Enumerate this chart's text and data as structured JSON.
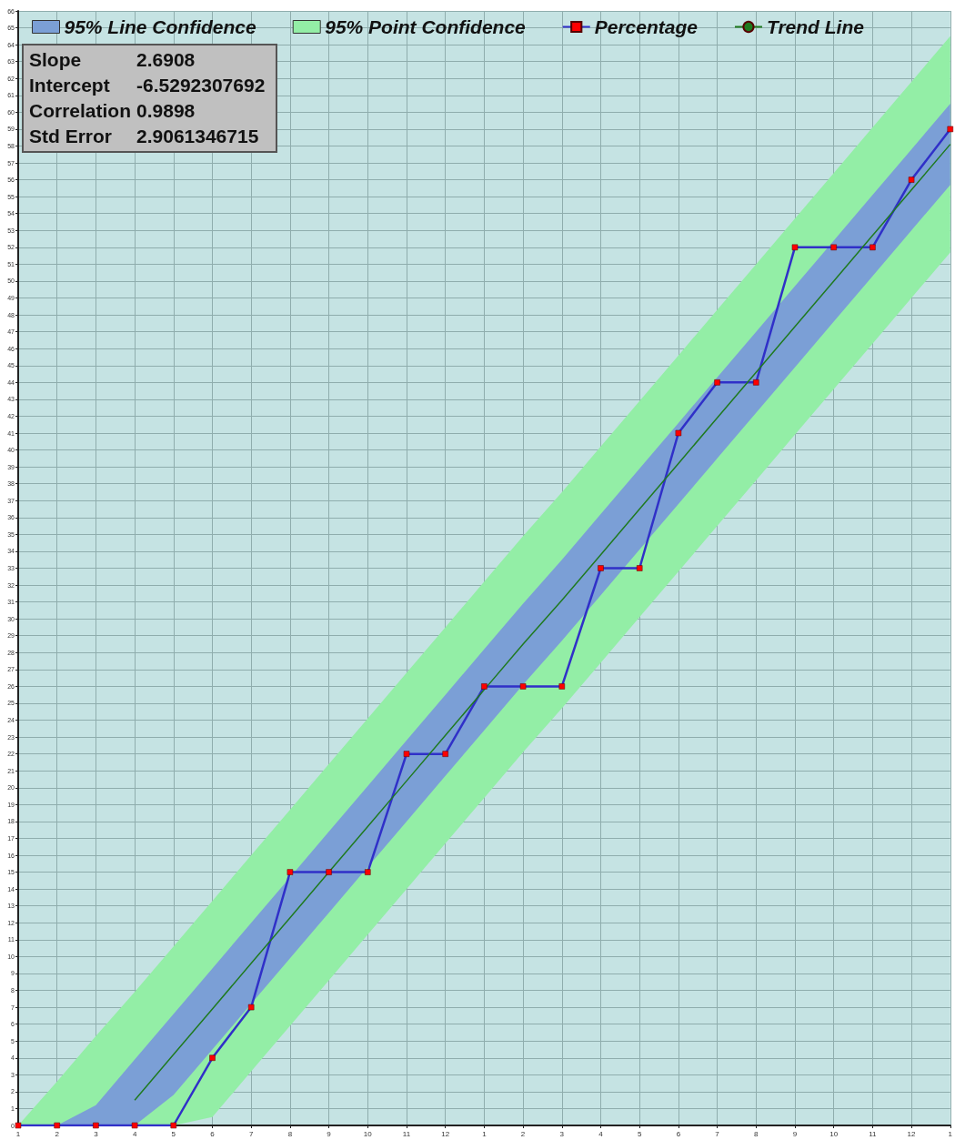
{
  "chart_data": {
    "type": "line",
    "categories": [
      "1",
      "2",
      "3",
      "4",
      "5",
      "6",
      "7",
      "8",
      "9",
      "10",
      "11",
      "12",
      "1",
      "2",
      "3",
      "4",
      "5",
      "6",
      "7",
      "8",
      "9",
      "10",
      "11",
      "12",
      "1"
    ],
    "ylim": [
      0,
      66
    ],
    "yticks": [
      0,
      1,
      2,
      3,
      4,
      5,
      6,
      7,
      8,
      9,
      10,
      11,
      12,
      13,
      14,
      15,
      16,
      17,
      18,
      19,
      20,
      21,
      22,
      23,
      24,
      25,
      26,
      27,
      28,
      29,
      30,
      31,
      32,
      33,
      34,
      35,
      36,
      37,
      38,
      39,
      40,
      41,
      42,
      43,
      44,
      45,
      46,
      47,
      48,
      49,
      50,
      51,
      52,
      53,
      54,
      55,
      56,
      57,
      58,
      59,
      60,
      61,
      62,
      63,
      64,
      65,
      66
    ],
    "grid": true,
    "legend": "top",
    "marker": "square",
    "line_style": "solid",
    "series": [
      {
        "name": "95% Line Confidence",
        "type": "area",
        "color": "#7b9fd6",
        "values": [
          null,
          null,
          null,
          null,
          null,
          null,
          null,
          null,
          null,
          null,
          null,
          null,
          null,
          null,
          null,
          null,
          null,
          null,
          null,
          null,
          null,
          null,
          null,
          null,
          null
        ],
        "lower": [
          0,
          0,
          0,
          0,
          1.8,
          4.5,
          7.2,
          9.9,
          12.6,
          15.3,
          18.0,
          20.7,
          23.4,
          26.1,
          28.7,
          31.4,
          34.1,
          36.8,
          39.5,
          42.2,
          44.9,
          47.6,
          50.3,
          53.0,
          55.7
        ],
        "upper": [
          0,
          0,
          1.2,
          3.9,
          6.6,
          9.3,
          12.0,
          14.7,
          17.4,
          20.1,
          22.8,
          25.5,
          28.2,
          30.9,
          33.5,
          36.2,
          38.9,
          41.6,
          44.3,
          47.0,
          49.7,
          52.4,
          55.1,
          57.8,
          60.5
        ]
      },
      {
        "name": "95% Point Confidence",
        "type": "area",
        "color": "#93eea6",
        "values": [
          null,
          null,
          null,
          null,
          null,
          null,
          null,
          null,
          null,
          null,
          null,
          null,
          null,
          null,
          null,
          null,
          null,
          null,
          null,
          null,
          null,
          null,
          null,
          null,
          null
        ],
        "lower": [
          0,
          0,
          0,
          0,
          0,
          0.5,
          3.2,
          5.9,
          8.6,
          11.3,
          14.0,
          16.7,
          19.4,
          22.1,
          24.7,
          27.4,
          30.1,
          32.8,
          35.5,
          38.2,
          40.9,
          43.6,
          46.3,
          49.0,
          51.7
        ],
        "upper": [
          0,
          2.6,
          5.3,
          7.9,
          10.6,
          13.3,
          16.0,
          18.7,
          21.4,
          24.1,
          26.8,
          29.5,
          32.2,
          34.9,
          37.5,
          40.2,
          42.9,
          45.6,
          48.3,
          51.0,
          53.7,
          56.4,
          59.1,
          61.8,
          64.5
        ]
      },
      {
        "name": "Percentage",
        "color": "#3030c8",
        "colors": [
          "#ff0000",
          "#ff0000",
          "#ff0000",
          "#ff0000",
          "#ff0000",
          "#ff0000",
          "#ff0000",
          "#ff0000",
          "#ff0000",
          "#ff0000",
          "#ff0000",
          "#ff0000",
          "#ff0000",
          "#ff0000",
          "#ff0000",
          "#ff0000",
          "#ff0000",
          "#ff0000",
          "#ff0000",
          "#ff0000",
          "#ff0000",
          "#ff0000",
          "#ff0000",
          "#ff0000",
          "#ff0000"
        ],
        "values": [
          0,
          0,
          0,
          0,
          0,
          4,
          7,
          15,
          15,
          15,
          22,
          22,
          26,
          26,
          26,
          33,
          33,
          41,
          44,
          44,
          52,
          52,
          52,
          56,
          59
        ]
      },
      {
        "name": "Trend Line",
        "color": "#1f7a1f",
        "marker": "none",
        "values": [
          null,
          null,
          null,
          1.5,
          4.2,
          6.9,
          9.6,
          12.3,
          15.0,
          17.7,
          20.4,
          23.1,
          25.8,
          28.5,
          31.1,
          33.8,
          36.5,
          39.2,
          41.9,
          44.6,
          47.3,
          50.0,
          52.7,
          55.4,
          58.1
        ]
      }
    ],
    "annotations": [
      "Slope\t2.6908",
      "Intercept\t-6.5292307692",
      "Correlation\t0.9898",
      "Std Error\t2.9061346715"
    ]
  }
}
